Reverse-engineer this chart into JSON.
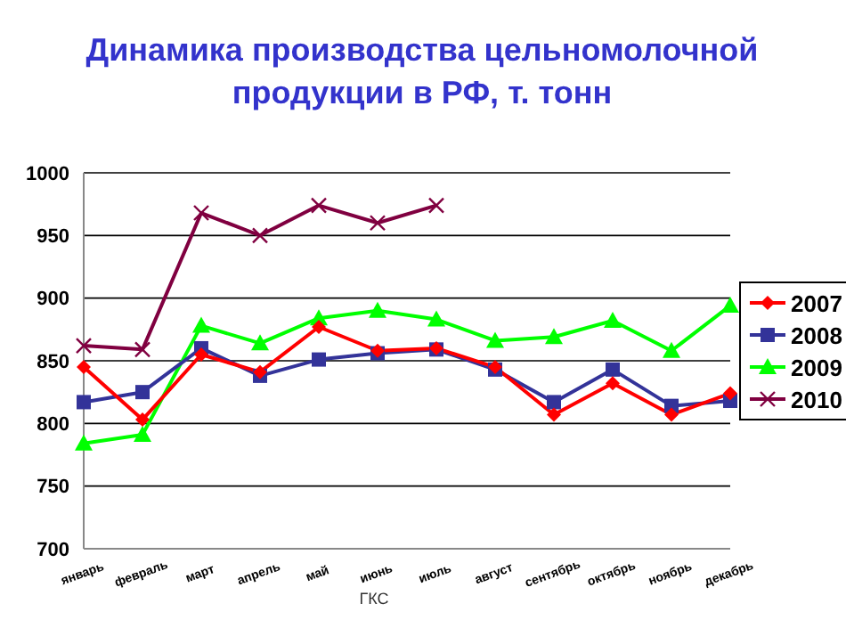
{
  "chart_data": {
    "type": "line",
    "title": "Динамика производства цельномолочной продукции в РФ, т. тонн",
    "categories": [
      "январь",
      "февраль",
      "март",
      "апрель",
      "май",
      "июнь",
      "июль",
      "август",
      "сентябрь",
      "октябрь",
      "ноябрь",
      "декабрь"
    ],
    "series": [
      {
        "name": "2007",
        "color": "#ff0000",
        "marker": "diamond",
        "values": [
          845,
          803,
          855,
          841,
          877,
          858,
          860,
          845,
          807,
          832,
          807,
          824
        ]
      },
      {
        "name": "2008",
        "color": "#333399",
        "marker": "square",
        "values": [
          817,
          825,
          860,
          838,
          851,
          856,
          859,
          843,
          817,
          843,
          814,
          818
        ]
      },
      {
        "name": "2009",
        "color": "#00ff00",
        "marker": "triangle",
        "values": [
          784,
          791,
          878,
          864,
          884,
          890,
          883,
          866,
          869,
          882,
          858,
          894
        ]
      },
      {
        "name": "2010",
        "color": "#800040",
        "marker": "cross",
        "values": [
          862,
          859,
          968,
          950,
          974,
          960,
          974,
          null,
          null,
          null,
          null,
          null
        ]
      }
    ],
    "ylim": [
      700,
      1000
    ],
    "yticks": [
      700,
      750,
      800,
      850,
      900,
      950,
      1000
    ],
    "grid": "y",
    "legend": "right",
    "annotations": [
      "ГКС"
    ]
  }
}
